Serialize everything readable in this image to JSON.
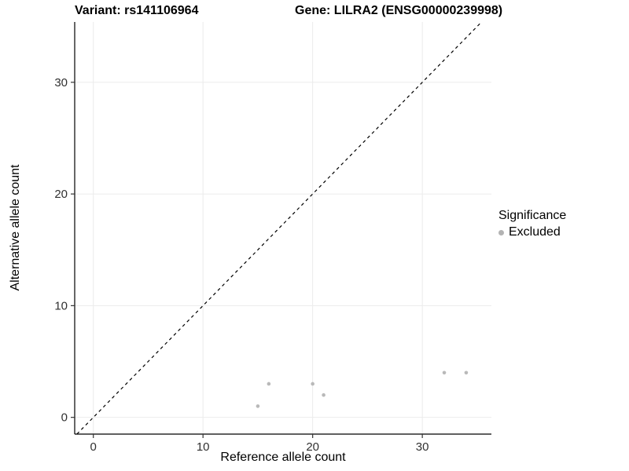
{
  "titles": {
    "left": "Variant: rs141106964",
    "right": "Gene: LILRA2 (ENSG00000239998)"
  },
  "axes": {
    "x_label": "Reference allele count",
    "y_label": "Alternative allele count"
  },
  "legend": {
    "title": "Significance",
    "items": [
      {
        "label": "Excluded",
        "color": "#b3b3b3"
      }
    ]
  },
  "colors": {
    "point": "#b9b9b9",
    "gridline": "#ebebeb",
    "axis_line": "#000000",
    "tick": "#333333",
    "identity_line": "#000000"
  },
  "chart_data": {
    "type": "scatter",
    "title": "Variant: rs141106964 / Gene: LILRA2 (ENSG00000239998)",
    "xlabel": "Reference allele count",
    "ylabel": "Alternative allele count",
    "xlim": [
      -1.7,
      36.3
    ],
    "ylim": [
      -1.5,
      35.4
    ],
    "xticks": [
      0,
      10,
      20,
      30
    ],
    "yticks": [
      0,
      10,
      20,
      30
    ],
    "grid": true,
    "legend_position": "right",
    "identity_line": {
      "style": "dashed",
      "equation": "y = x"
    },
    "series": [
      {
        "name": "Excluded",
        "color": "#b9b9b9",
        "points": [
          [
            15,
            1
          ],
          [
            16,
            3
          ],
          [
            20,
            3
          ],
          [
            21,
            2
          ],
          [
            32,
            4
          ],
          [
            34,
            4
          ]
        ]
      }
    ]
  }
}
